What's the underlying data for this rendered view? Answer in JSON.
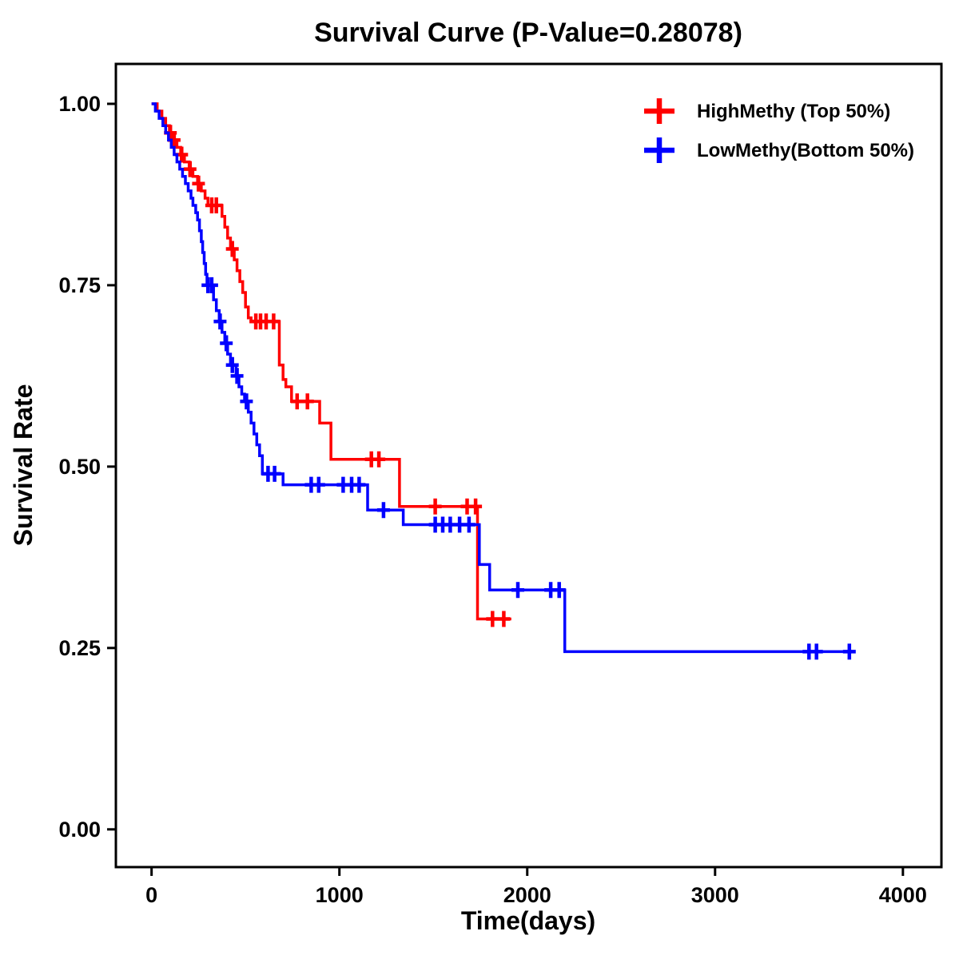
{
  "chart_data": {
    "type": "line",
    "chart_kind": "kaplan-meier-step-survival",
    "title": "Survival Curve (P-Value=0.28078)",
    "xlabel": "Time(days)",
    "ylabel": "Survival Rate",
    "x_ticks": [
      "0",
      "1000",
      "2000",
      "3000",
      "4000"
    ],
    "y_ticks": [
      "0.00",
      "0.25",
      "0.50",
      "0.75",
      "1.00"
    ],
    "xlim": [
      -190,
      4205
    ],
    "ylim": [
      -0.052,
      1.055
    ],
    "grid": false,
    "legend_position": "top-right",
    "p_value": "0.28078",
    "series": [
      {
        "name": "HighMethy (Top 50%)",
        "color": "#FF0000",
        "steps": [
          [
            0,
            1.0
          ],
          [
            30,
            0.99
          ],
          [
            55,
            0.98
          ],
          [
            75,
            0.97
          ],
          [
            95,
            0.96
          ],
          [
            115,
            0.95
          ],
          [
            135,
            0.94
          ],
          [
            155,
            0.93
          ],
          [
            175,
            0.92
          ],
          [
            200,
            0.91
          ],
          [
            220,
            0.9
          ],
          [
            245,
            0.89
          ],
          [
            265,
            0.88
          ],
          [
            285,
            0.87
          ],
          [
            300,
            0.86
          ],
          [
            375,
            0.845
          ],
          [
            390,
            0.83
          ],
          [
            405,
            0.815
          ],
          [
            420,
            0.8
          ],
          [
            440,
            0.785
          ],
          [
            455,
            0.77
          ],
          [
            470,
            0.755
          ],
          [
            485,
            0.74
          ],
          [
            500,
            0.72
          ],
          [
            515,
            0.705
          ],
          [
            530,
            0.7
          ],
          [
            680,
            0.64
          ],
          [
            700,
            0.62
          ],
          [
            715,
            0.61
          ],
          [
            745,
            0.59
          ],
          [
            895,
            0.56
          ],
          [
            955,
            0.51
          ],
          [
            1320,
            0.445
          ],
          [
            1735,
            0.29
          ],
          [
            1915,
            0.29
          ]
        ],
        "censors": [
          [
            100,
            0.96
          ],
          [
            120,
            0.95
          ],
          [
            160,
            0.93
          ],
          [
            205,
            0.91
          ],
          [
            250,
            0.89
          ],
          [
            320,
            0.86
          ],
          [
            345,
            0.86
          ],
          [
            430,
            0.8
          ],
          [
            555,
            0.7
          ],
          [
            580,
            0.7
          ],
          [
            610,
            0.7
          ],
          [
            650,
            0.7
          ],
          [
            775,
            0.59
          ],
          [
            830,
            0.59
          ],
          [
            1170,
            0.51
          ],
          [
            1210,
            0.51
          ],
          [
            1510,
            0.445
          ],
          [
            1680,
            0.445
          ],
          [
            1725,
            0.445
          ],
          [
            1815,
            0.29
          ],
          [
            1875,
            0.29
          ]
        ]
      },
      {
        "name": "LowMethy(Bottom 50%)",
        "color": "#0000FF",
        "steps": [
          [
            0,
            1.0
          ],
          [
            20,
            0.99
          ],
          [
            40,
            0.98
          ],
          [
            60,
            0.97
          ],
          [
            75,
            0.96
          ],
          [
            90,
            0.95
          ],
          [
            105,
            0.94
          ],
          [
            120,
            0.93
          ],
          [
            135,
            0.92
          ],
          [
            150,
            0.91
          ],
          [
            165,
            0.9
          ],
          [
            180,
            0.89
          ],
          [
            195,
            0.88
          ],
          [
            210,
            0.87
          ],
          [
            220,
            0.86
          ],
          [
            235,
            0.85
          ],
          [
            245,
            0.84
          ],
          [
            255,
            0.825
          ],
          [
            265,
            0.81
          ],
          [
            272,
            0.795
          ],
          [
            280,
            0.78
          ],
          [
            288,
            0.765
          ],
          [
            295,
            0.75
          ],
          [
            330,
            0.73
          ],
          [
            345,
            0.715
          ],
          [
            360,
            0.7
          ],
          [
            375,
            0.685
          ],
          [
            390,
            0.67
          ],
          [
            405,
            0.655
          ],
          [
            420,
            0.64
          ],
          [
            450,
            0.625
          ],
          [
            465,
            0.61
          ],
          [
            480,
            0.6
          ],
          [
            495,
            0.59
          ],
          [
            515,
            0.575
          ],
          [
            530,
            0.56
          ],
          [
            545,
            0.545
          ],
          [
            560,
            0.53
          ],
          [
            575,
            0.515
          ],
          [
            590,
            0.49
          ],
          [
            700,
            0.475
          ],
          [
            1150,
            0.44
          ],
          [
            1340,
            0.42
          ],
          [
            1745,
            0.365
          ],
          [
            1800,
            0.33
          ],
          [
            2200,
            0.245
          ],
          [
            3735,
            0.245
          ]
        ],
        "censors": [
          [
            300,
            0.75
          ],
          [
            320,
            0.75
          ],
          [
            365,
            0.7
          ],
          [
            398,
            0.67
          ],
          [
            430,
            0.64
          ],
          [
            455,
            0.625
          ],
          [
            505,
            0.59
          ],
          [
            620,
            0.49
          ],
          [
            655,
            0.49
          ],
          [
            850,
            0.475
          ],
          [
            890,
            0.475
          ],
          [
            1020,
            0.475
          ],
          [
            1065,
            0.475
          ],
          [
            1105,
            0.475
          ],
          [
            1235,
            0.44
          ],
          [
            1510,
            0.42
          ],
          [
            1550,
            0.42
          ],
          [
            1590,
            0.42
          ],
          [
            1640,
            0.42
          ],
          [
            1690,
            0.42
          ],
          [
            1950,
            0.33
          ],
          [
            2125,
            0.33
          ],
          [
            2170,
            0.33
          ],
          [
            3500,
            0.245
          ],
          [
            3540,
            0.245
          ],
          [
            3715,
            0.245
          ]
        ]
      }
    ]
  }
}
